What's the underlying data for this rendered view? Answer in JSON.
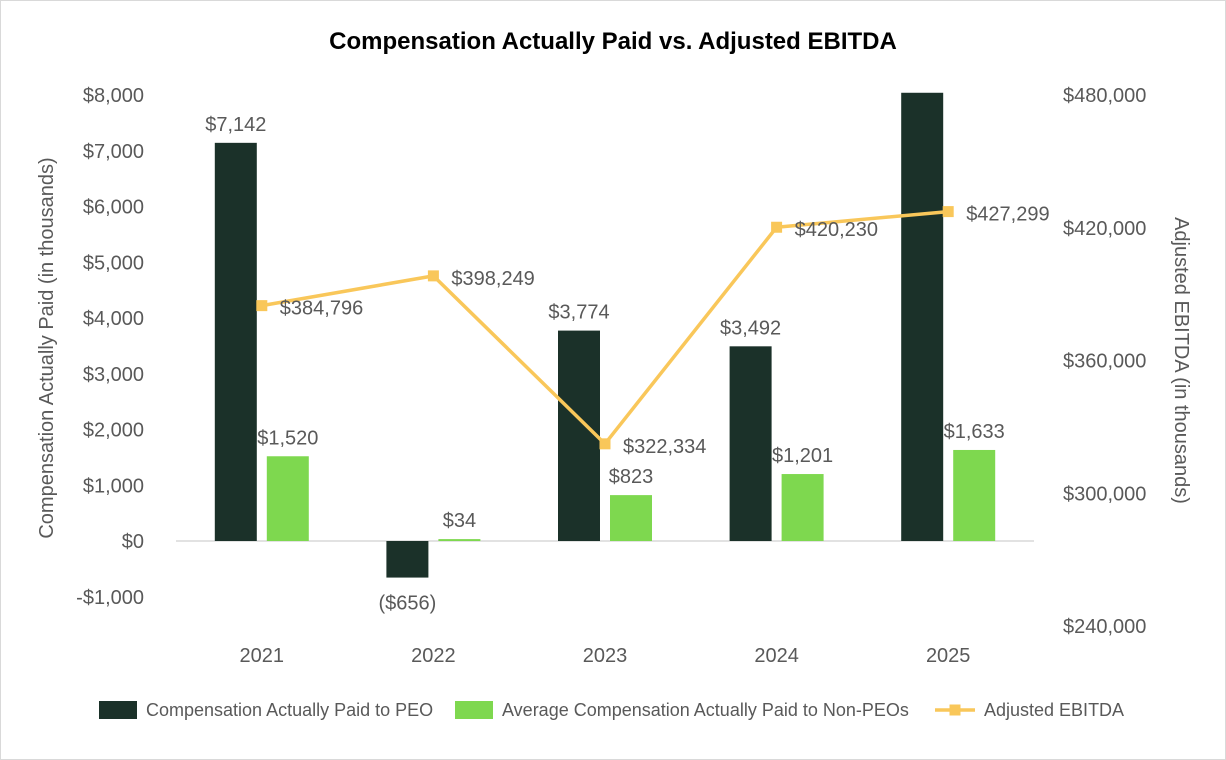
{
  "chart_data": {
    "type": "bar",
    "title": "Compensation Actually Paid vs. Adjusted EBITDA",
    "categories": [
      "2021",
      "2022",
      "2023",
      "2024",
      "2025"
    ],
    "y_left": {
      "label": "Compensation Actually Paid (in thousands)",
      "range": [
        -1000,
        8000
      ],
      "ticks": [
        8000,
        7000,
        6000,
        5000,
        4000,
        3000,
        2000,
        1000,
        0,
        -1000
      ],
      "tick_labels": [
        "$8,000",
        "$7,000",
        "$6,000",
        "$5,000",
        "$4,000",
        "$3,000",
        "$2,000",
        "$1,000",
        "$0",
        "-$1,000"
      ]
    },
    "y_right": {
      "label": "Adjusted EBITDA (in thousands)",
      "range": [
        240000,
        480000
      ],
      "ticks": [
        480000,
        420000,
        360000,
        300000,
        240000
      ],
      "tick_labels": [
        "$480,000",
        "$420,000",
        "$360,000",
        "$300,000",
        "$240,000"
      ]
    },
    "series": [
      {
        "name": "Compensation Actually Paid to PEO",
        "kind": "bar",
        "axis": "left",
        "color": "#1b3129",
        "values": [
          7142,
          -656,
          3774,
          3492,
          8040
        ],
        "labels": [
          "$7,142",
          "($656)",
          "$3,774",
          "$3,492",
          ""
        ]
      },
      {
        "name": "Average Compensation Actually Paid to Non-PEOs",
        "kind": "bar",
        "axis": "left",
        "color": "#7ed84f",
        "values": [
          1520,
          34,
          823,
          1201,
          1633
        ],
        "labels": [
          "$1,520",
          "$34",
          "$823",
          "$1,201",
          "$1,633"
        ]
      },
      {
        "name": "Adjusted EBITDA",
        "kind": "line",
        "axis": "right",
        "color": "#f9c75a",
        "values": [
          384796,
          398249,
          322334,
          420230,
          427299
        ],
        "labels": [
          "$384,796",
          "$398,249",
          "$322,334",
          "$420,230",
          "$427,299"
        ]
      }
    ],
    "legend": "bottom",
    "grid": false
  }
}
